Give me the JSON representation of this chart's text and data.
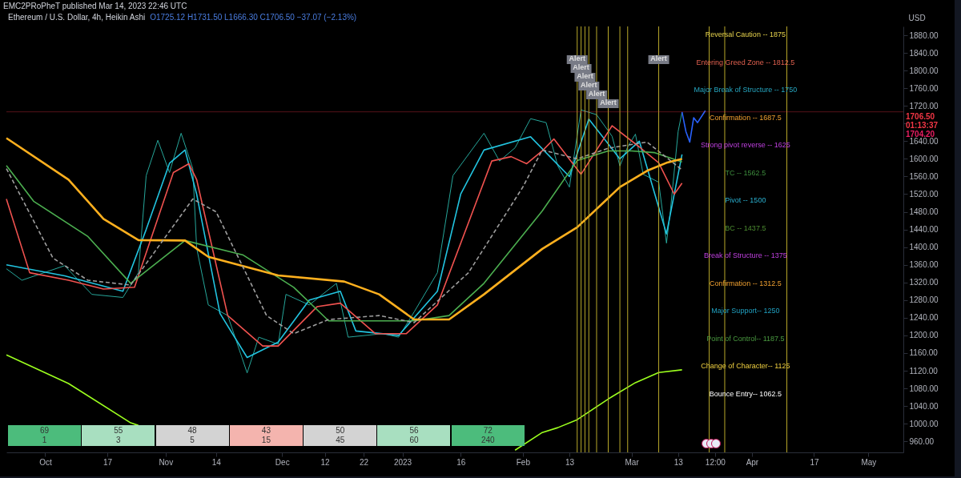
{
  "chart_data": {
    "type": "line",
    "title": "Ethereum / U.S. Dollar, 4h, Heikin Ashi",
    "subtitle": "O1725.12 H1731.50 L1666.30 C1706.50 −37.07 (−2.13%)",
    "ylabel": "USD",
    "xlim": [
      "2022-09-21",
      "2023-05-10"
    ],
    "xticks": [
      {
        "value": "2022-10-01",
        "label": "Oct"
      },
      {
        "value": "2022-10-17",
        "label": "17"
      },
      {
        "value": "2022-11-01",
        "label": "Nov"
      },
      {
        "value": "2022-11-14",
        "label": "14"
      },
      {
        "value": "2022-12-01",
        "label": "Dec"
      },
      {
        "value": "2022-12-12",
        "label": "12"
      },
      {
        "value": "2022-12-22",
        "label": "22"
      },
      {
        "value": "2023-01-01",
        "label": "2023"
      },
      {
        "value": "2023-01-16",
        "label": "16"
      },
      {
        "value": "2023-02-01",
        "label": "Feb"
      },
      {
        "value": "2023-02-13",
        "label": "13"
      },
      {
        "value": "2023-03-01",
        "label": "Mar"
      },
      {
        "value": "2023-03-13",
        "label": "13"
      },
      {
        "value": "2023-03-22T12:00",
        "label": "12:00"
      },
      {
        "value": "2023-04-01",
        "label": "Apr"
      },
      {
        "value": "2023-04-17",
        "label": "17"
      },
      {
        "value": "2023-05-01",
        "label": "May"
      }
    ],
    "ylim": [
      935,
      1900
    ],
    "yticks": [
      {
        "value": 960,
        "label": "960.00"
      },
      {
        "value": 1000,
        "label": "1000.00"
      },
      {
        "value": 1040,
        "label": "1040.00"
      },
      {
        "value": 1080,
        "label": "1080.00"
      },
      {
        "value": 1120,
        "label": "1120.00"
      },
      {
        "value": 1160,
        "label": "1160.00"
      },
      {
        "value": 1200,
        "label": "1200.00"
      },
      {
        "value": 1240,
        "label": "1240.00"
      },
      {
        "value": 1280,
        "label": "1280.00"
      },
      {
        "value": 1320,
        "label": "1320.00"
      },
      {
        "value": 1360,
        "label": "1360.00"
      },
      {
        "value": 1400,
        "label": "1400.00"
      },
      {
        "value": 1440,
        "label": "1440.00"
      },
      {
        "value": 1480,
        "label": "1480.00"
      },
      {
        "value": 1520,
        "label": "1520.00"
      },
      {
        "value": 1560,
        "label": "1560.00"
      },
      {
        "value": 1600,
        "label": "1600.00"
      },
      {
        "value": 1640,
        "label": "1640.00"
      },
      {
        "value": 1680,
        "label": null
      },
      {
        "value": 1720,
        "label": "1720.00"
      },
      {
        "value": 1760,
        "label": "1760.00"
      },
      {
        "value": 1800,
        "label": "1800.00"
      },
      {
        "value": 1840,
        "label": "1840.00"
      },
      {
        "value": 1880,
        "label": "1880.00"
      }
    ],
    "series": [
      {
        "color": "#26a69a",
        "x": [
          "2022-09-21",
          "2022-09-25",
          "2022-09-28",
          "2022-10-06",
          "2022-10-13",
          "2022-10-21",
          "2022-10-25",
          "2022-10-27",
          "2022-10-30",
          "2022-11-02",
          "2022-11-05",
          "2022-11-08",
          "2022-11-09",
          "2022-11-12",
          "2022-11-17",
          "2022-11-22",
          "2022-11-25",
          "2022-11-30",
          "2022-12-02",
          "2022-12-08",
          "2022-12-15",
          "2022-12-18",
          "2022-12-27",
          "2022-12-31",
          "2023-01-04",
          "2023-01-10",
          "2023-01-14",
          "2023-01-22",
          "2023-01-26",
          "2023-01-30",
          "2023-02-03",
          "2023-02-07",
          "2023-02-10",
          "2023-02-13",
          "2023-02-16",
          "2023-02-20",
          "2023-02-24",
          "2023-02-26",
          "2023-02-28",
          "2023-03-02",
          "2023-03-04",
          "2023-03-08",
          "2023-03-10",
          "2023-03-11",
          "2023-03-13",
          "2023-03-14"
        ],
        "values": [
          1351,
          1325,
          1334,
          1358,
          1293,
          1286,
          1342,
          1562,
          1642,
          1569,
          1658,
          1578,
          1398,
          1269,
          1245,
          1115,
          1196,
          1180,
          1293,
          1269,
          1318,
          1196,
          1204,
          1196,
          1253,
          1342,
          1562,
          1658,
          1595,
          1625,
          1691,
          1682,
          1584,
          1536,
          1711,
          1700,
          1651,
          1584,
          1627,
          1656,
          1565,
          1547,
          1409,
          1482,
          1662,
          1706
        ]
      },
      {
        "color": "#22c4e0",
        "x": [
          "2022-09-21",
          "2022-10-06",
          "2022-10-21",
          "2022-10-27",
          "2022-11-02",
          "2022-11-06",
          "2022-11-09",
          "2022-11-15",
          "2022-11-22",
          "2022-11-30",
          "2022-12-08",
          "2022-12-16",
          "2022-12-20",
          "2022-12-31",
          "2023-01-10",
          "2023-01-16",
          "2023-01-22",
          "2023-02-03",
          "2023-02-13",
          "2023-02-18",
          "2023-02-26",
          "2023-03-03",
          "2023-03-10",
          "2023-03-14"
        ],
        "values": [
          1360,
          1335,
          1300,
          1440,
          1590,
          1620,
          1520,
          1250,
          1150,
          1185,
          1280,
          1300,
          1210,
          1200,
          1300,
          1520,
          1620,
          1650,
          1560,
          1690,
          1600,
          1640,
          1430,
          1610
        ]
      },
      {
        "color": "#f0524f",
        "x": [
          "2022-09-21",
          "2022-09-27",
          "2022-10-07",
          "2022-10-16",
          "2022-10-24",
          "2022-11-03",
          "2022-11-07",
          "2022-11-09",
          "2022-11-17",
          "2022-11-26",
          "2022-11-30",
          "2022-12-10",
          "2022-12-16",
          "2022-12-25",
          "2023-01-02",
          "2023-01-10",
          "2023-01-24",
          "2023-01-29",
          "2023-02-02",
          "2023-02-06",
          "2023-02-09",
          "2023-02-16",
          "2023-02-24",
          "2023-03-03",
          "2023-03-08",
          "2023-03-12",
          "2023-03-14"
        ],
        "values": [
          1509,
          1342,
          1325,
          1305,
          1309,
          1569,
          1589,
          1553,
          1245,
          1176,
          1176,
          1265,
          1273,
          1204,
          1204,
          1269,
          1595,
          1605,
          1589,
          1618,
          1645,
          1565,
          1675,
          1627,
          1591,
          1520,
          1545
        ]
      },
      {
        "color": "#4caf50",
        "x": [
          "2022-09-21",
          "2022-09-28",
          "2022-10-12",
          "2022-10-23",
          "2022-11-06",
          "2022-11-21",
          "2022-12-04",
          "2022-12-13",
          "2022-12-26",
          "2023-01-04",
          "2023-01-13",
          "2023-01-22",
          "2023-02-06",
          "2023-02-15",
          "2023-02-23",
          "2023-03-01",
          "2023-03-07",
          "2023-03-14"
        ],
        "values": [
          1585,
          1504,
          1424,
          1318,
          1415,
          1382,
          1309,
          1233,
          1233,
          1233,
          1245,
          1318,
          1482,
          1596,
          1618,
          1618,
          1614,
          1593
        ]
      },
      {
        "color": "#ffb01e",
        "x": [
          "2022-09-21",
          "2022-10-07",
          "2022-10-16",
          "2022-10-25",
          "2022-11-06",
          "2022-11-12",
          "2022-11-30",
          "2022-12-17",
          "2022-12-26",
          "2023-01-04",
          "2023-01-13",
          "2023-01-22",
          "2023-02-06",
          "2023-02-15",
          "2023-02-26",
          "2023-03-05",
          "2023-03-10",
          "2023-03-14"
        ],
        "values": [
          1647,
          1553,
          1464,
          1416,
          1415,
          1378,
          1336,
          1322,
          1293,
          1236,
          1236,
          1293,
          1396,
          1445,
          1536,
          1573,
          1591,
          1600
        ]
      },
      {
        "color": "#9e9e9e",
        "line_style": "dashed",
        "x": [
          "2022-09-21",
          "2022-10-03",
          "2022-10-12",
          "2022-10-23",
          "2022-11-08",
          "2022-11-14",
          "2022-11-27",
          "2022-12-04",
          "2022-12-13",
          "2022-12-26",
          "2023-01-04",
          "2023-01-18",
          "2023-02-01",
          "2023-02-06",
          "2023-02-15",
          "2023-02-23",
          "2023-03-05",
          "2023-03-14"
        ],
        "values": [
          1578,
          1375,
          1325,
          1314,
          1509,
          1480,
          1245,
          1204,
          1236,
          1245,
          1229,
          1342,
          1536,
          1620,
          1600,
          1624,
          1638,
          1575
        ]
      },
      {
        "color": "#9cff1e",
        "x": [
          "2022-09-21",
          "2022-10-07",
          "2022-10-23",
          "2022-10-25",
          "2022-11-06",
          "2022-11-15",
          "2022-11-30",
          "2022-12-31",
          "2023-01-30",
          "2023-02-06",
          "2023-02-10",
          "2023-02-15",
          "2023-02-23",
          "2023-03-02",
          "2023-03-08",
          "2023-03-14"
        ],
        "values": [
          1156,
          1091,
          1002,
          996,
          null,
          null,
          null,
          null,
          940,
          980,
          991,
          1009,
          1056,
          1093,
          1116,
          1122
        ]
      },
      {
        "color": "#2962ff",
        "x": [
          "2023-03-14",
          "2023-03-15",
          "2023-03-16",
          "2023-03-17",
          "2023-03-18",
          "2023-03-20"
        ],
        "values": [
          1706,
          1662,
          1638,
          1693,
          1682,
          1709
        ]
      }
    ],
    "ref_lines": [
      {
        "axis": "x",
        "value": "2023-02-15",
        "label": "Alert",
        "color": "#b8a82a"
      },
      {
        "axis": "x",
        "value": "2023-02-16",
        "label": "Alert",
        "color": "#b8a82a"
      },
      {
        "axis": "x",
        "value": "2023-02-17",
        "label": "Alert",
        "color": "#b8a82a"
      },
      {
        "axis": "x",
        "value": "2023-02-18",
        "label": "Alert",
        "color": "#b8a82a"
      },
      {
        "axis": "x",
        "value": "2023-02-20",
        "label": "Alert",
        "color": "#b8a82a"
      },
      {
        "axis": "x",
        "value": "2023-02-23",
        "label": "Alert",
        "color": "#b8a82a"
      },
      {
        "axis": "x",
        "value": "2023-02-26",
        "color": "#b8a82a"
      },
      {
        "axis": "x",
        "value": "2023-02-28",
        "color": "#b8a82a"
      },
      {
        "axis": "x",
        "value": "2023-03-08",
        "label": "Alert",
        "color": "#b8a82a"
      },
      {
        "axis": "x",
        "value": "2023-03-21",
        "color": "#b8a82a"
      },
      {
        "axis": "x",
        "value": "2023-03-25",
        "color": "#b8a82a"
      },
      {
        "axis": "x",
        "value": "2023-04-10",
        "color": "#b8a82a"
      },
      {
        "axis": "y",
        "value": 1706.5,
        "label": "1706.50",
        "color": "#f23645"
      }
    ],
    "annotations": [
      "EMC2PRoPheT published Mar 14, 2023 22:46 UTC",
      "69\n1",
      "55\n3",
      "48\n5",
      "43\n15",
      "50\n45",
      "56\n60",
      "72\n240",
      "Reversal Caution  --  1875",
      "Entering Greed Zone --  1812.5",
      "Major Break of Structure --  1750",
      "Confirmation --  1687.5",
      "Strong pivot reverse --  1625",
      "TC --  1562.5",
      "Pivot --  1500",
      "BC --  1437.5",
      "Break of Structure --  1375",
      "Confirmation --  1312.5",
      "Major Support--  1250",
      "Point of Control--  1187.5",
      "Change of Character--  1125",
      "Bounce Entry--  1062.5",
      "01:13:37",
      "1704.20"
    ],
    "grid": false
  }
}
